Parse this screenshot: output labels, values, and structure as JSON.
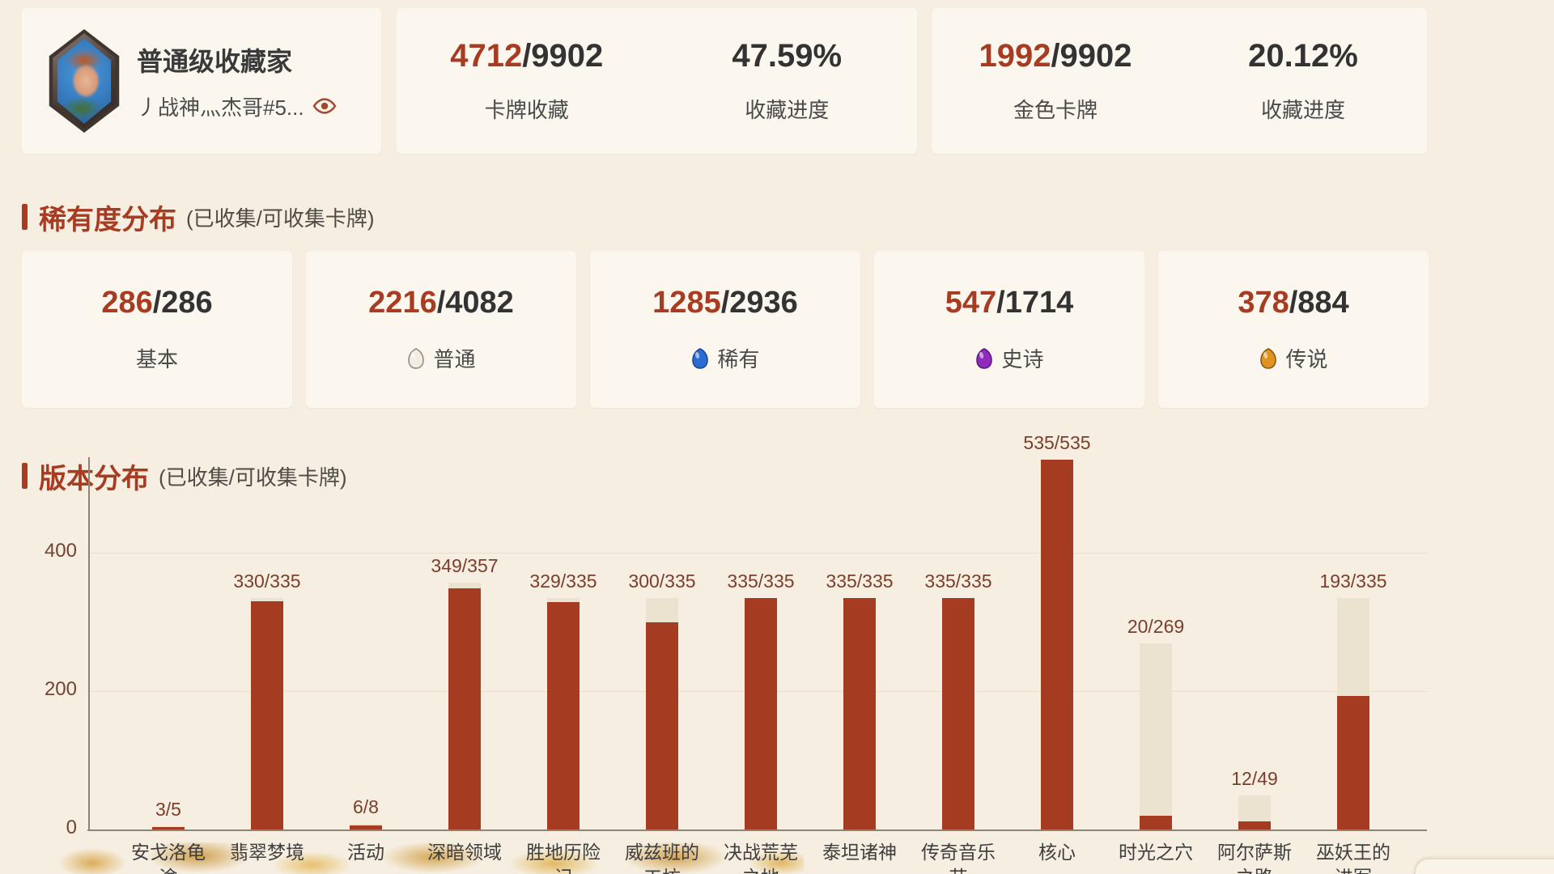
{
  "colors": {
    "page_background": "#f6eee0",
    "card_background": "#fbf7ee",
    "accent_red": "#a83c22",
    "bar_collected": "#a53b20",
    "bar_total": "#ebe2cf",
    "dark_text": "#333333",
    "chart_label": "#7c3e2b"
  },
  "header": {
    "collector_title": "普通级收藏家",
    "username": "丿战神灬杰哥#5...",
    "stats": [
      {
        "value": "4712",
        "total": "/9902",
        "label": "卡牌收藏"
      },
      {
        "value": "47.59%",
        "label": "收藏进度"
      },
      {
        "value": "1992",
        "total": "/9902",
        "label": "金色卡牌"
      },
      {
        "value": "20.12%",
        "label": "收藏进度"
      }
    ]
  },
  "rarity": {
    "title": "稀有度分布",
    "subtitle": "(已收集/可收集卡牌)",
    "cards": [
      {
        "collected": "286",
        "total": "/286",
        "label": "基本"
      },
      {
        "collected": "2216",
        "total": "/4082",
        "label": "普通",
        "gem": {
          "name": "common-gem-icon",
          "fill": "#f3ede0",
          "stroke": "#8e8e8e"
        }
      },
      {
        "collected": "1285",
        "total": "/2936",
        "label": "稀有",
        "gem": {
          "name": "rare-gem-icon",
          "fill": "#2c6bd4",
          "stroke": "#1d4793"
        }
      },
      {
        "collected": "547",
        "total": "/1714",
        "label": "史诗",
        "gem": {
          "name": "epic-gem-icon",
          "fill": "#9129bd",
          "stroke": "#5d1a7e"
        }
      },
      {
        "collected": "378",
        "total": "/884",
        "label": "传说",
        "gem": {
          "name": "legendary-gem-icon",
          "fill": "#e0941f",
          "stroke": "#8a5a12"
        }
      }
    ]
  },
  "version_section": {
    "title": "版本分布",
    "subtitle": "(已收集/可收集卡牌)"
  },
  "chart_data": {
    "type": "bar",
    "categories": [
      "安戈洛龟途",
      "翡翠梦境",
      "活动",
      "深暗领域",
      "胜地历险记",
      "威兹班的工坊",
      "决战荒芜之地",
      "泰坦诸神",
      "传奇音乐节",
      "核心",
      "时光之穴",
      "阿尔萨斯之路",
      "巫妖王的进军"
    ],
    "series": [
      {
        "name": "已收集卡牌",
        "values": [
          3,
          330,
          6,
          349,
          329,
          300,
          335,
          335,
          335,
          535,
          20,
          12,
          193
        ],
        "color": "#a53b20"
      },
      {
        "name": "可收集卡牌",
        "values": [
          5,
          335,
          8,
          357,
          335,
          335,
          335,
          335,
          335,
          535,
          269,
          49,
          335
        ],
        "color": "#ebe2cf"
      }
    ],
    "bar_labels": [
      "3/5",
      "330/335",
      "6/8",
      "349/357",
      "329/335",
      "300/335",
      "335/335",
      "335/335",
      "335/335",
      "535/535",
      "20/269",
      "12/49",
      "193/335"
    ],
    "yticks": [
      0,
      200,
      400
    ],
    "ylim": [
      0,
      540
    ],
    "grid": true,
    "legend_position": "none"
  }
}
